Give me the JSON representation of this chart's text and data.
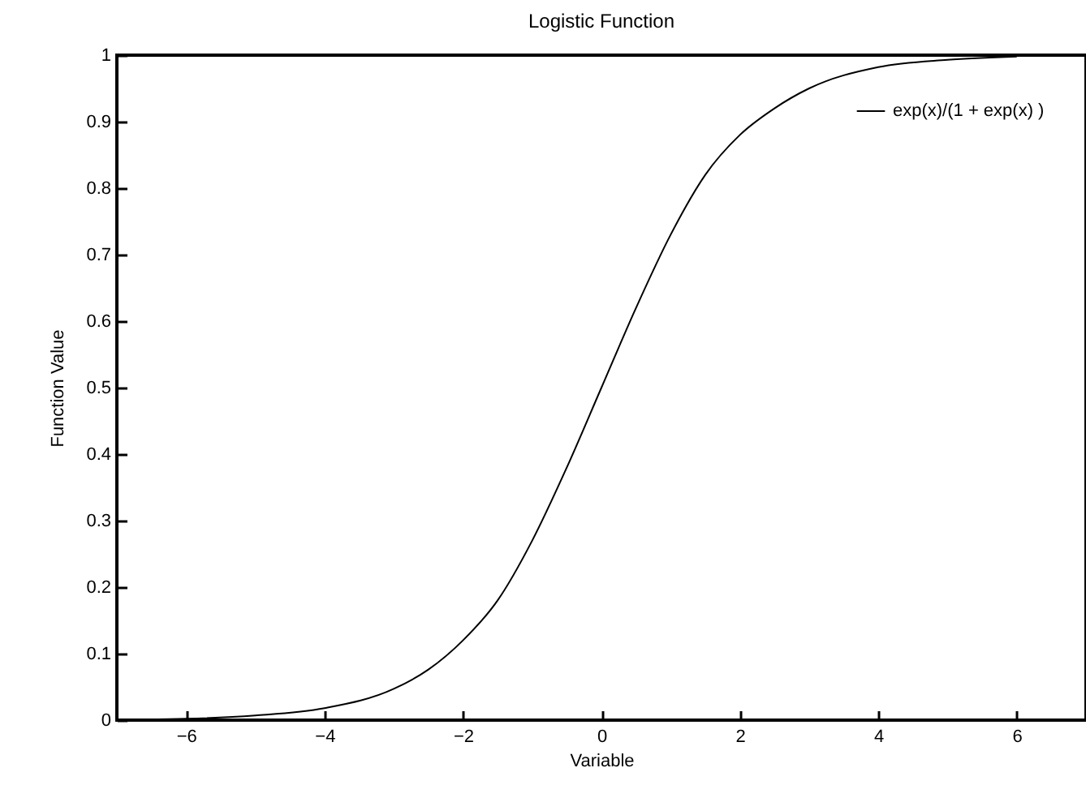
{
  "chart_data": {
    "type": "line",
    "title": "Logistic Function",
    "xlabel": "Variable",
    "ylabel": "Function Value",
    "x": [
      -6.6,
      -6,
      -5,
      -4,
      -3,
      -2.5,
      -2,
      -1.5,
      -1,
      -0.5,
      0,
      0.5,
      1,
      1.5,
      2,
      2.5,
      3,
      4,
      5,
      6
    ],
    "series": [
      {
        "name": "exp(x)/(1 + exp(x) )",
        "color": "#000000",
        "values": [
          0.001,
          0.002,
          0.007,
          0.018,
          0.047,
          0.076,
          0.12,
          0.18,
          0.27,
          0.38,
          0.5,
          0.62,
          0.73,
          0.82,
          0.88,
          0.92,
          0.95,
          0.982,
          0.993,
          0.998
        ]
      }
    ],
    "xlim": [
      -7,
      7
    ],
    "xticks": [
      -6,
      -4,
      -2,
      0,
      2,
      4,
      6
    ],
    "ylim": [
      0,
      1
    ],
    "yticks": [
      0,
      0.1,
      0.2,
      0.3,
      0.4,
      0.5,
      0.6,
      0.7,
      0.8,
      0.9,
      1
    ],
    "legend": "top right",
    "grid": false,
    "marker": "none",
    "line_style": "solid"
  }
}
